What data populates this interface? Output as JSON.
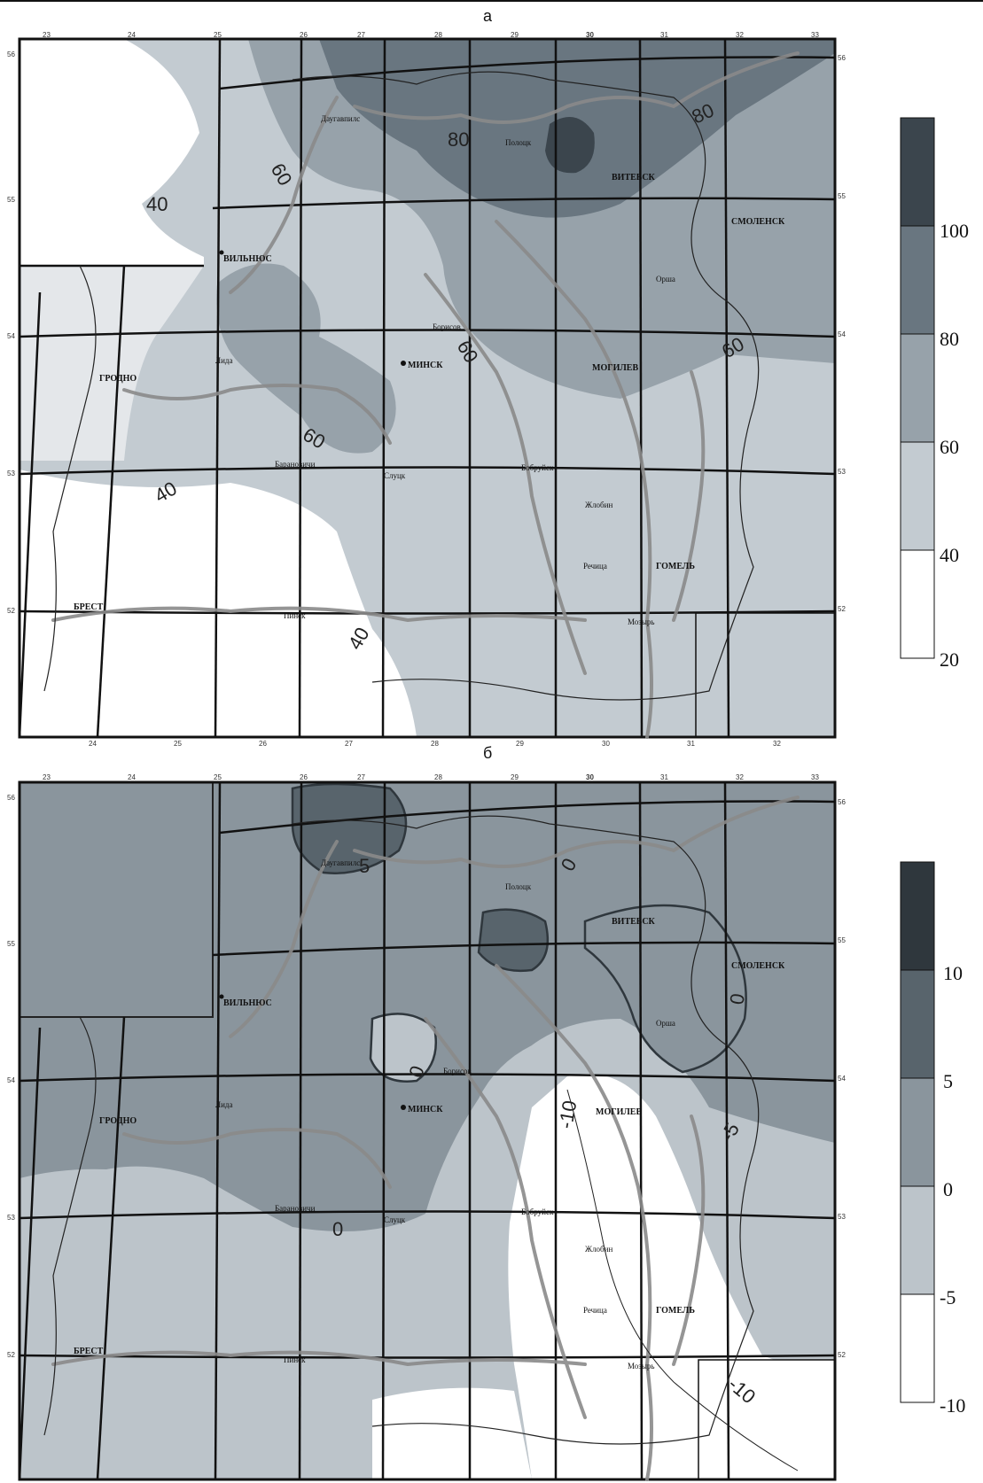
{
  "panels": [
    {
      "title": "а",
      "legend": [
        "100",
        "80",
        "60",
        "40",
        "20"
      ],
      "legend_colors": [
        "#3b454d",
        "#697680",
        "#97a2aa",
        "#c3cbd1",
        "#ffffff"
      ],
      "isolines": [
        "40",
        "60",
        "80",
        "80",
        "60",
        "60",
        "60",
        "40",
        "40"
      ]
    },
    {
      "title": "б",
      "legend": [
        "10",
        "5",
        "0",
        "-5",
        "-10"
      ],
      "legend_colors": [
        "#2f373d",
        "#58646c",
        "#8a959d",
        "#bcc4ca",
        "#ffffff"
      ],
      "isolines": [
        "5",
        "0",
        "0",
        "0",
        "0",
        "-5",
        "-10",
        "-10"
      ]
    }
  ],
  "lon_ticks": [
    "23",
    "24",
    "25",
    "26",
    "27",
    "28",
    "29",
    "30",
    "31",
    "32",
    "33"
  ],
  "lat_ticks": [
    "56",
    "55",
    "54",
    "53",
    "52"
  ],
  "cities": {
    "vilnius": "ВИЛЬНЮС",
    "grodno": "ГРОДНО",
    "minsk": "МИНСК",
    "vitebsk": "ВИТЕБСК",
    "smolensk": "СМОЛЕНСК",
    "mogilev": "МОГИЛЕВ",
    "gomel": "ГОМЕЛЬ",
    "brest": "БРЕСТ",
    "daugavpils": "Даугавпилс",
    "polotsk": "Полоцк",
    "orsha": "Орша",
    "borisov": "Борисов",
    "lida": "Лида",
    "pinsk": "Пинск",
    "slutsk": "Слуцк",
    "zhlobin": "Жлобин",
    "bobruisk": "Бобруйск",
    "mozyr": "Мозырь",
    "rechitsa": "Речица",
    "baranovichi": "Барановичи"
  }
}
